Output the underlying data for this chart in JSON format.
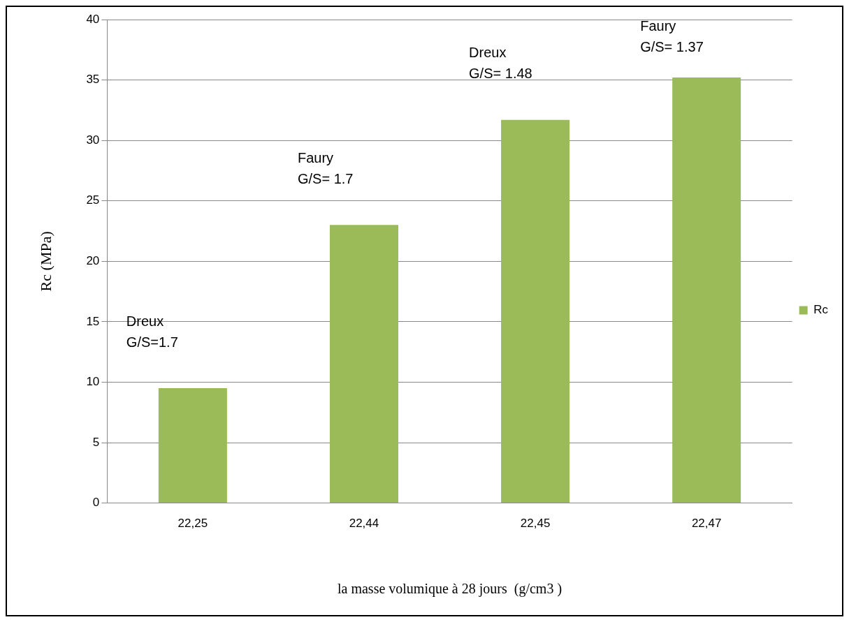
{
  "chart_data": {
    "type": "bar",
    "categories": [
      "22,25",
      "22,44",
      "22,45",
      "22,47"
    ],
    "series": [
      {
        "name": "Rc",
        "color": "#9bbb59",
        "values": [
          9.5,
          23.0,
          31.7,
          35.2
        ]
      }
    ],
    "xlabel": "la masse volumique à 28 jours  (g/cm3 )",
    "ylabel": "Rc (MPa)",
    "ylim": [
      0,
      40
    ],
    "yticks": [
      0,
      5,
      10,
      15,
      20,
      25,
      30,
      35,
      40
    ],
    "grid": "y",
    "legend": "right",
    "annotations": [
      "Dreux\nG/S=1.7",
      "Faury\nG/S= 1.7",
      "Dreux\nG/S= 1.48",
      "Faury\nG/S= 1.37"
    ]
  }
}
